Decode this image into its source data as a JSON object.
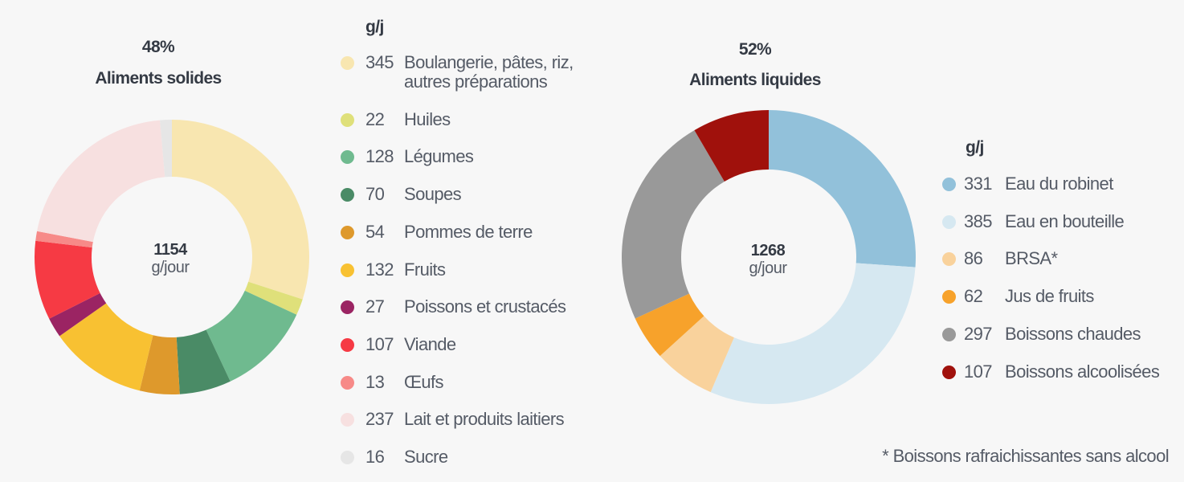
{
  "chart_data": [
    {
      "type": "pie",
      "variant": "donut",
      "percent_label": "48%",
      "title": "Aliments solides",
      "center_value": "1154",
      "center_unit": "g/jour",
      "legend_header": "g/j",
      "start": "top",
      "direction": "clockwise",
      "slices": [
        {
          "label": "Boulangerie, pâtes, riz, autres préparations",
          "label_lines": [
            "Boulangerie, pâtes, riz,",
            "autres préparations"
          ],
          "value": 345,
          "color": "#f8e6b0"
        },
        {
          "label": "Huiles",
          "value": 22,
          "color": "#dfe07a"
        },
        {
          "label": "Légumes",
          "value": 128,
          "color": "#6fba8f"
        },
        {
          "label": "Soupes",
          "value": 70,
          "color": "#4a8b66"
        },
        {
          "label": "Pommes de terre",
          "value": 54,
          "color": "#de992c"
        },
        {
          "label": "Fruits",
          "value": 132,
          "color": "#f8c132"
        },
        {
          "label": "Poissons et crustacés",
          "value": 27,
          "color": "#9b2463"
        },
        {
          "label": "Viande",
          "value": 107,
          "color": "#f63a44"
        },
        {
          "label": "Œufs",
          "value": 13,
          "color": "#f78a88"
        },
        {
          "label": "Lait et produits laitiers",
          "value": 237,
          "color": "#f7e0e0"
        },
        {
          "label": "Sucre",
          "value": 16,
          "color": "#e6e6e6"
        }
      ]
    },
    {
      "type": "pie",
      "variant": "donut",
      "percent_label": "52%",
      "title": "Aliments liquides",
      "center_value": "1268",
      "center_unit": "g/jour",
      "legend_header": "g/j",
      "start": "top",
      "direction": "clockwise",
      "slices": [
        {
          "label": "Eau du robinet",
          "value": 331,
          "color": "#92c1da"
        },
        {
          "label": "Eau en bouteille",
          "value": 385,
          "color": "#d6e8f1"
        },
        {
          "label": "BRSA*",
          "value": 86,
          "color": "#f9d29c"
        },
        {
          "label": "Jus de fruits",
          "value": 62,
          "color": "#f7a22b"
        },
        {
          "label": "Boissons chaudes",
          "value": 297,
          "color": "#999999"
        },
        {
          "label": "Boissons alcoolisées",
          "value": 107,
          "color": "#a0110c"
        }
      ],
      "footnote": "* Boissons rafraichissantes sans alcool"
    }
  ]
}
